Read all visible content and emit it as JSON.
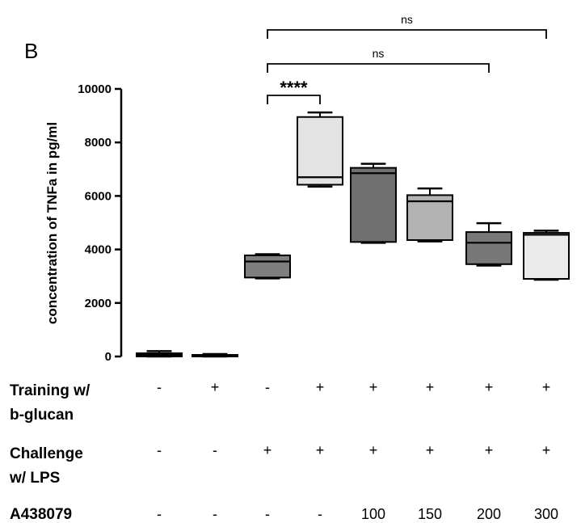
{
  "panel_label": "B",
  "chart_data": {
    "type": "box",
    "ylabel": "concentration of TNFa in pg/ml",
    "ylim": [
      0,
      10000
    ],
    "yticks": [
      0,
      2000,
      4000,
      6000,
      8000,
      10000
    ],
    "groups": [
      {
        "min": 0,
        "q1": 0,
        "median": 60,
        "q3": 120,
        "max": 200,
        "fill": "#ffffff"
      },
      {
        "min": 0,
        "q1": 0,
        "median": 30,
        "q3": 60,
        "max": 90,
        "fill": "#ffffff"
      },
      {
        "min": 2920,
        "q1": 2950,
        "median": 3550,
        "q3": 3780,
        "max": 3820,
        "fill": "#7f7f7f"
      },
      {
        "min": 6350,
        "q1": 6420,
        "median": 6700,
        "q3": 8950,
        "max": 9120,
        "fill": "#e3e3e3"
      },
      {
        "min": 4250,
        "q1": 4280,
        "median": 6850,
        "q3": 7050,
        "max": 7200,
        "fill": "#707070"
      },
      {
        "min": 4300,
        "q1": 4350,
        "median": 5800,
        "q3": 6030,
        "max": 6280,
        "fill": "#b2b2b2"
      },
      {
        "min": 3400,
        "q1": 3450,
        "median": 4250,
        "q3": 4650,
        "max": 4980,
        "fill": "#787878"
      },
      {
        "min": 2870,
        "q1": 2900,
        "median": 4550,
        "q3": 4620,
        "max": 4700,
        "fill": "#ebebeb"
      }
    ],
    "conditions": [
      {
        "label": "Training w/\nb-glucan",
        "values": [
          "-",
          "+",
          "-",
          "+",
          "+",
          "+",
          "+",
          "+"
        ]
      },
      {
        "label": "Challenge\nw/ LPS",
        "values": [
          "-",
          "-",
          "+",
          "+",
          "+",
          "+",
          "+",
          "+"
        ]
      },
      {
        "label": "A438079",
        "values": [
          "-",
          "-",
          "-",
          "-",
          "100",
          "150",
          "200",
          "300"
        ]
      }
    ],
    "significance": [
      {
        "from": 2,
        "to": 3,
        "label": "****"
      },
      {
        "from": 2,
        "to": 6,
        "label": "ns"
      },
      {
        "from": 2,
        "to": 7,
        "label": "ns"
      }
    ]
  }
}
